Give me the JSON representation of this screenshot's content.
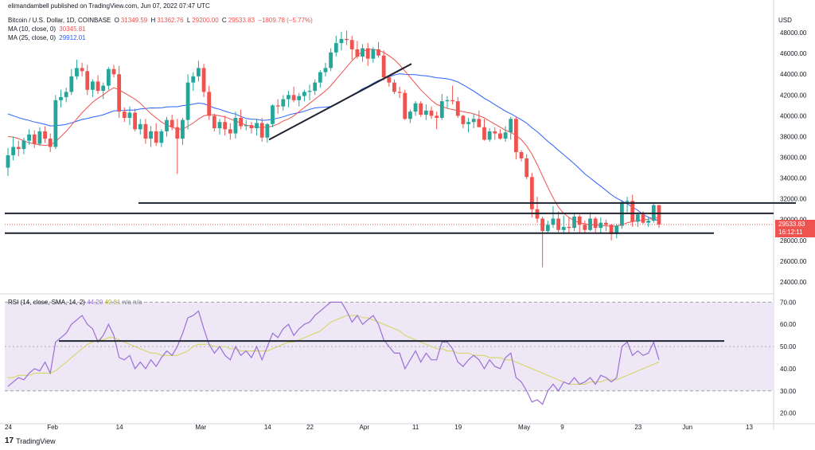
{
  "header": {
    "published": "elimandambell published on TradingView.com, Jun 07, 2022 07:47 UTC",
    "symbol": "Bitcoin / U.S. Dollar, 1D, COINBASE",
    "ohlc": {
      "o_label": "O",
      "o": "31349.59",
      "h_label": "H",
      "h": "31362.76",
      "l_label": "L",
      "l": "29200.00",
      "c_label": "C",
      "c": "29533.83",
      "chg": "−1809.78 (−5.77%)"
    },
    "ma10": {
      "label": "MA (10, close, 0)",
      "value": "30345.81"
    },
    "ma25": {
      "label": "MA (25, close, 0)",
      "value": "29912.01"
    }
  },
  "rsi_legend": {
    "label": "RSI (14, close, SMA, 14, 2)",
    "rsi": "44.20",
    "sma": "49.81",
    "na1": "n/a",
    "na2": "n/a"
  },
  "price_axis": {
    "currency": "USD"
  },
  "last_price": {
    "value": "29533.83",
    "countdown": "16:12:11"
  },
  "branding": {
    "name": "TradingView",
    "mark": "17"
  },
  "colors": {
    "up": "#26a69a",
    "down": "#ef5350",
    "ma10": "#ef5350",
    "ma25": "#2962ff",
    "rsi": "#9c6fd6",
    "rsi_sma": "#d4d45a",
    "rsi_band": "#ede7f6"
  },
  "chart_data": {
    "type": "candlestick",
    "price_ticks": [
      24000,
      26000,
      28000,
      30000,
      32000,
      34000,
      36000,
      38000,
      40000,
      42000,
      44000,
      46000,
      48000
    ],
    "price_range": [
      23000,
      50000
    ],
    "date_ticks": [
      {
        "label": "24",
        "idx": 0
      },
      {
        "label": "Feb",
        "idx": 8
      },
      {
        "label": "14",
        "idx": 21
      },
      {
        "label": "Mar",
        "idx": 36
      },
      {
        "label": "14",
        "idx": 49
      },
      {
        "label": "22",
        "idx": 57
      },
      {
        "label": "Apr",
        "idx": 67
      },
      {
        "label": "11",
        "idx": 77
      },
      {
        "label": "19",
        "idx": 85
      },
      {
        "label": "May",
        "idx": 97
      },
      {
        "label": "9",
        "idx": 105
      },
      {
        "label": "23",
        "idx": 119
      },
      {
        "label": "Jun",
        "idx": 128
      },
      {
        "label": "13",
        "idx": 140
      }
    ],
    "candles": [
      [
        35000,
        36900,
        34200,
        36200
      ],
      [
        36200,
        38000,
        35700,
        37000
      ],
      [
        37000,
        37600,
        36100,
        36800
      ],
      [
        36800,
        37900,
        36300,
        37600
      ],
      [
        37600,
        38700,
        37200,
        38200
      ],
      [
        38200,
        38600,
        36900,
        37300
      ],
      [
        37300,
        38900,
        37100,
        38500
      ],
      [
        38500,
        39000,
        37400,
        37800
      ],
      [
        37800,
        38300,
        36500,
        37000
      ],
      [
        37000,
        42000,
        36800,
        41500
      ],
      [
        41500,
        42500,
        40800,
        41800
      ],
      [
        41800,
        42700,
        41300,
        42300
      ],
      [
        42300,
        44500,
        42000,
        43800
      ],
      [
        43800,
        45400,
        43500,
        44600
      ],
      [
        44600,
        45100,
        43800,
        44300
      ],
      [
        44300,
        44900,
        42000,
        42500
      ],
      [
        42500,
        43500,
        41800,
        43300
      ],
      [
        43300,
        43900,
        42100,
        42400
      ],
      [
        42400,
        43200,
        41600,
        42900
      ],
      [
        42900,
        44700,
        42500,
        44500
      ],
      [
        44500,
        44900,
        43700,
        44000
      ],
      [
        44000,
        44800,
        39800,
        40400
      ],
      [
        40400,
        40800,
        39400,
        39800
      ],
      [
        39800,
        40900,
        39100,
        40300
      ],
      [
        40300,
        40700,
        38500,
        38700
      ],
      [
        38700,
        39700,
        38200,
        39200
      ],
      [
        39200,
        39700,
        37300,
        37800
      ],
      [
        37800,
        39000,
        37000,
        38500
      ],
      [
        38500,
        39300,
        37100,
        37400
      ],
      [
        37400,
        38700,
        37000,
        38500
      ],
      [
        38500,
        39900,
        38000,
        39600
      ],
      [
        39600,
        40100,
        38600,
        38900
      ],
      [
        38900,
        39700,
        34400,
        37800
      ],
      [
        37800,
        39800,
        37200,
        39600
      ],
      [
        39600,
        44000,
        38700,
        43200
      ],
      [
        43200,
        44200,
        42400,
        43800
      ],
      [
        43800,
        45300,
        43300,
        44600
      ],
      [
        44600,
        45000,
        41800,
        42300
      ],
      [
        42300,
        42900,
        39600,
        40000
      ],
      [
        40000,
        40200,
        38500,
        38800
      ],
      [
        38800,
        39700,
        38200,
        39400
      ],
      [
        39400,
        40000,
        38100,
        38700
      ],
      [
        38700,
        39300,
        37700,
        38300
      ],
      [
        38300,
        40400,
        37800,
        39800
      ],
      [
        39800,
        40600,
        38700,
        39000
      ],
      [
        39000,
        39600,
        38600,
        39100
      ],
      [
        39100,
        39400,
        38300,
        38800
      ],
      [
        38800,
        39700,
        38100,
        39300
      ],
      [
        39300,
        39800,
        37500,
        37900
      ],
      [
        37900,
        39300,
        37400,
        39200
      ],
      [
        39200,
        41100,
        38900,
        41000
      ],
      [
        41000,
        41600,
        40200,
        40900
      ],
      [
        40900,
        42000,
        40500,
        41600
      ],
      [
        41600,
        42400,
        40800,
        42000
      ],
      [
        42000,
        42800,
        41300,
        41500
      ],
      [
        41500,
        42200,
        40900,
        41900
      ],
      [
        41900,
        42500,
        41400,
        42300
      ],
      [
        42300,
        43000,
        41500,
        42400
      ],
      [
        42400,
        43500,
        42000,
        43200
      ],
      [
        43200,
        44400,
        42700,
        44200
      ],
      [
        44200,
        45100,
        43800,
        44600
      ],
      [
        44600,
        46500,
        44300,
        46100
      ],
      [
        46100,
        47700,
        45700,
        47000
      ],
      [
        47000,
        48100,
        46300,
        47400
      ],
      [
        47400,
        48200,
        46800,
        47300
      ],
      [
        47300,
        47700,
        45400,
        46400
      ],
      [
        46400,
        47200,
        45500,
        45700
      ],
      [
        45700,
        46900,
        45200,
        46500
      ],
      [
        46500,
        47000,
        44800,
        45500
      ],
      [
        45500,
        46600,
        45100,
        46400
      ],
      [
        46400,
        47100,
        45600,
        45800
      ],
      [
        45800,
        46300,
        43400,
        43700
      ],
      [
        43700,
        43900,
        42800,
        43200
      ],
      [
        43200,
        43500,
        42100,
        42300
      ],
      [
        42300,
        42800,
        41700,
        42200
      ],
      [
        42200,
        42500,
        39600,
        39700
      ],
      [
        39700,
        40600,
        39300,
        40400
      ],
      [
        40400,
        41400,
        40000,
        41200
      ],
      [
        41200,
        41400,
        39900,
        40100
      ],
      [
        40100,
        41100,
        39600,
        40500
      ],
      [
        40500,
        40900,
        39700,
        40000
      ],
      [
        40000,
        40400,
        38700,
        39800
      ],
      [
        39800,
        42100,
        39600,
        41400
      ],
      [
        41400,
        41900,
        40700,
        41500
      ],
      [
        41500,
        42900,
        41100,
        41400
      ],
      [
        41400,
        41800,
        39800,
        40000
      ],
      [
        40000,
        40100,
        38800,
        39200
      ],
      [
        39200,
        39800,
        38400,
        39400
      ],
      [
        39400,
        40200,
        38800,
        39700
      ],
      [
        39700,
        40500,
        38900,
        38900
      ],
      [
        38900,
        39700,
        37600,
        37700
      ],
      [
        37700,
        38800,
        37500,
        38500
      ],
      [
        38500,
        38900,
        37700,
        38300
      ],
      [
        38300,
        38700,
        37700,
        37800
      ],
      [
        37800,
        39000,
        37500,
        38400
      ],
      [
        38400,
        39900,
        37700,
        39700
      ],
      [
        39700,
        39900,
        35800,
        36500
      ],
      [
        36500,
        36700,
        35600,
        35900
      ],
      [
        35900,
        36300,
        33900,
        34100
      ],
      [
        34100,
        34500,
        30200,
        31000
      ],
      [
        31000,
        32200,
        29700,
        30100
      ],
      [
        30100,
        30300,
        25400,
        28900
      ],
      [
        28900,
        29900,
        28700,
        29500
      ],
      [
        29500,
        31300,
        29200,
        30100
      ],
      [
        30100,
        30800,
        28800,
        29000
      ],
      [
        29000,
        30400,
        28600,
        29300
      ],
      [
        29300,
        30200,
        28700,
        29200
      ],
      [
        29200,
        30600,
        28900,
        30300
      ],
      [
        30300,
        30500,
        28700,
        29500
      ],
      [
        29500,
        29900,
        28700,
        29000
      ],
      [
        29000,
        30700,
        28900,
        30100
      ],
      [
        30100,
        30300,
        28800,
        29200
      ],
      [
        29200,
        30200,
        28700,
        29700
      ],
      [
        29700,
        30000,
        28900,
        29500
      ],
      [
        29500,
        29600,
        28000,
        28600
      ],
      [
        28600,
        29600,
        28200,
        29400
      ],
      [
        29400,
        31900,
        29100,
        31700
      ],
      [
        31700,
        32200,
        30700,
        31800
      ],
      [
        31800,
        32400,
        29300,
        29800
      ],
      [
        29800,
        30700,
        29300,
        30500
      ],
      [
        30500,
        30800,
        29600,
        29700
      ],
      [
        29700,
        30200,
        29300,
        29900
      ],
      [
        29900,
        31600,
        29700,
        31400
      ],
      [
        31400,
        31400,
        29200,
        29534
      ]
    ],
    "ma10": [
      38000,
      37950,
      37800,
      37600,
      37400,
      37300,
      37200,
      37150,
      37200,
      37500,
      38000,
      38500,
      39100,
      39700,
      40300,
      40800,
      41300,
      41700,
      42000,
      42400,
      42700,
      42500,
      42200,
      41900,
      41600,
      41200,
      40700,
      40200,
      39800,
      39400,
      39100,
      38900,
      38700,
      38700,
      39000,
      39300,
      39700,
      40000,
      40100,
      40100,
      40000,
      39900,
      39700,
      39500,
      39300,
      39100,
      39000,
      38900,
      38900,
      38900,
      39000,
      39200,
      39500,
      39700,
      40000,
      40400,
      40800,
      41200,
      41600,
      42000,
      42400,
      42900,
      43500,
      44100,
      44700,
      45300,
      45800,
      46200,
      46400,
      46400,
      46300,
      46100,
      45800,
      45400,
      44900,
      44300,
      43700,
      43100,
      42500,
      42000,
      41500,
      41100,
      40900,
      40700,
      40600,
      40500,
      40400,
      40300,
      40200,
      40000,
      39800,
      39500,
      39200,
      38900,
      38600,
      38400,
      38100,
      37700,
      37100,
      36300,
      35300,
      34200,
      33100,
      32100,
      31200,
      30600,
      30200,
      29900,
      29700,
      29600,
      29500,
      29500,
      29450,
      29400,
      29350,
      29400,
      29500,
      29700,
      29800,
      29900,
      29950,
      30050,
      30100,
      30200
    ]
  },
  "rsi_data": {
    "ticks": [
      20,
      30,
      40,
      50,
      60,
      70
    ],
    "band": [
      30,
      70
    ],
    "mid": 50,
    "rsi": [
      32,
      34,
      36,
      35,
      38,
      40,
      39,
      43,
      38,
      52,
      54,
      56,
      60,
      62,
      64,
      60,
      58,
      52,
      55,
      60,
      55,
      45,
      44,
      46,
      40,
      43,
      40,
      44,
      41,
      45,
      48,
      46,
      50,
      56,
      63,
      64,
      66,
      58,
      51,
      47,
      50,
      46,
      44,
      50,
      46,
      48,
      45,
      50,
      44,
      50,
      56,
      54,
      58,
      60,
      55,
      58,
      60,
      61,
      64,
      66,
      68,
      70,
      70,
      70,
      66,
      61,
      64,
      60,
      62,
      64,
      60,
      53,
      50,
      47,
      47,
      40,
      44,
      48,
      43,
      47,
      44,
      44,
      52,
      52,
      49,
      43,
      41,
      44,
      46,
      44,
      40,
      44,
      41,
      40,
      45,
      47,
      36,
      34,
      30,
      25,
      26,
      24,
      30,
      33,
      30,
      34,
      33,
      36,
      33,
      34,
      36,
      33,
      37,
      36,
      34,
      36,
      50,
      52,
      46,
      48,
      46,
      47,
      52,
      44
    ],
    "rsi_sma": [
      36,
      36,
      37,
      37,
      37,
      38,
      38,
      38,
      38,
      39,
      41,
      43,
      45,
      47,
      49,
      51,
      52,
      53,
      53,
      54,
      54,
      53,
      52,
      51,
      50,
      49,
      48,
      47,
      47,
      46,
      46,
      46,
      46,
      47,
      48,
      50,
      51,
      51,
      51,
      50,
      50,
      50,
      49,
      49,
      48,
      48,
      48,
      48,
      48,
      48,
      49,
      50,
      51,
      52,
      52,
      53,
      54,
      55,
      56,
      57,
      59,
      61,
      62,
      63,
      64,
      64,
      64,
      63,
      63,
      62,
      61,
      60,
      59,
      58,
      57,
      55,
      54,
      53,
      52,
      51,
      50,
      49,
      49,
      48,
      48,
      47,
      47,
      47,
      46,
      46,
      46,
      45,
      45,
      45,
      44,
      44,
      43,
      42,
      41,
      40,
      39,
      38,
      37,
      36,
      35,
      34,
      33,
      33,
      33,
      33,
      34,
      34,
      34,
      35,
      35,
      35,
      36,
      37,
      38,
      39,
      40,
      41,
      42,
      43
    ]
  }
}
